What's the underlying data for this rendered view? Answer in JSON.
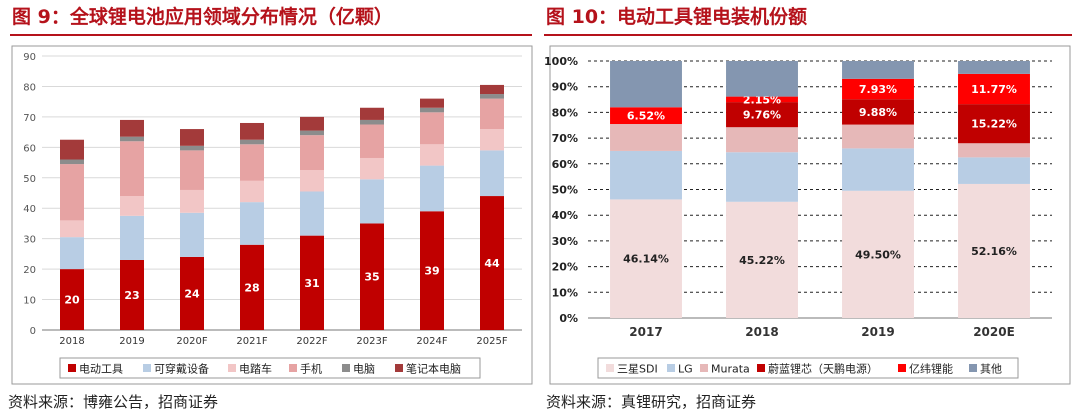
{
  "left": {
    "title": "图 9：全球锂电池应用领域分布情况（亿颗）",
    "source": "资料来源：博雍公告，招商证券",
    "chart_data": {
      "type": "bar",
      "stacked": true,
      "categories": [
        "2018",
        "2019",
        "2020F",
        "2021F",
        "2022F",
        "2023F",
        "2024F",
        "2025F"
      ],
      "series": [
        {
          "name": "电动工具",
          "color": "#c00000",
          "values": [
            20,
            23,
            24,
            28,
            31,
            35,
            39,
            44
          ],
          "labels": [
            "20",
            "23",
            "24",
            "28",
            "31",
            "35",
            "39",
            "44"
          ]
        },
        {
          "name": "可穿戴设备",
          "color": "#b8cde4",
          "values": [
            10.5,
            14.5,
            14.5,
            14,
            14.5,
            14.5,
            15,
            15
          ]
        },
        {
          "name": "电踏车",
          "color": "#f2c6c6",
          "values": [
            5.5,
            6.5,
            7.5,
            7,
            7,
            7,
            7,
            7
          ]
        },
        {
          "name": "手机",
          "color": "#e6a3a3",
          "values": [
            18.5,
            18,
            13,
            12,
            11.5,
            11,
            10.5,
            10
          ]
        },
        {
          "name": "电脑",
          "color": "#8c8c8c",
          "values": [
            1.5,
            1.5,
            1.5,
            1.5,
            1.5,
            1.5,
            1.5,
            1.5
          ]
        },
        {
          "name": "笔记本电脑",
          "color": "#a33a3a",
          "values": [
            6.5,
            5.5,
            5.5,
            5.5,
            4.5,
            4,
            3,
            3
          ]
        }
      ],
      "ylim": [
        0,
        90
      ],
      "yticks": [
        "0",
        "10",
        "20",
        "30",
        "40",
        "50",
        "60",
        "70",
        "80",
        "90"
      ],
      "grid": true,
      "legend_position": "bottom"
    }
  },
  "right": {
    "title": "图 10：电动工具锂电装机份额",
    "source": "资料来源：真锂研究，招商证券",
    "chart_data": {
      "type": "bar",
      "stacked": true,
      "percent": true,
      "categories": [
        "2017",
        "2018",
        "2019",
        "2020E"
      ],
      "series": [
        {
          "name": "三星SDI",
          "color": "#f2dcdc",
          "values": [
            46.14,
            45.22,
            49.5,
            52.16
          ],
          "labels": [
            "46.14%",
            "45.22%",
            "49.50%",
            "52.16%"
          ]
        },
        {
          "name": "LG",
          "color": "#b8cde4",
          "values": [
            18.86,
            19.28,
            16.5,
            10.34
          ]
        },
        {
          "name": "Murata",
          "color": "#e6b8b8",
          "values": [
            10.48,
            9.74,
            9.26,
            5.5
          ]
        },
        {
          "name": "蔚蓝锂芯（天鹏电源）",
          "color": "#c00000",
          "values": [
            0,
            9.76,
            9.88,
            15.22
          ],
          "labels": [
            "",
            "9.76%",
            "9.88%",
            "15.22%"
          ]
        },
        {
          "name": "亿纬锂能",
          "color": "#ff0000",
          "values": [
            6.52,
            2.15,
            7.93,
            11.77
          ],
          "labels": [
            "6.52%",
            "2.15%",
            "7.93%",
            "11.77%"
          ]
        },
        {
          "name": "其他",
          "color": "#8496b0",
          "values": [
            18.0,
            13.85,
            6.93,
            5.01
          ]
        }
      ],
      "ylim": [
        0,
        100
      ],
      "yticks": [
        "0%",
        "10%",
        "20%",
        "30%",
        "40%",
        "50%",
        "60%",
        "70%",
        "80%",
        "90%",
        "100%"
      ],
      "grid": true,
      "legend_position": "bottom"
    }
  }
}
